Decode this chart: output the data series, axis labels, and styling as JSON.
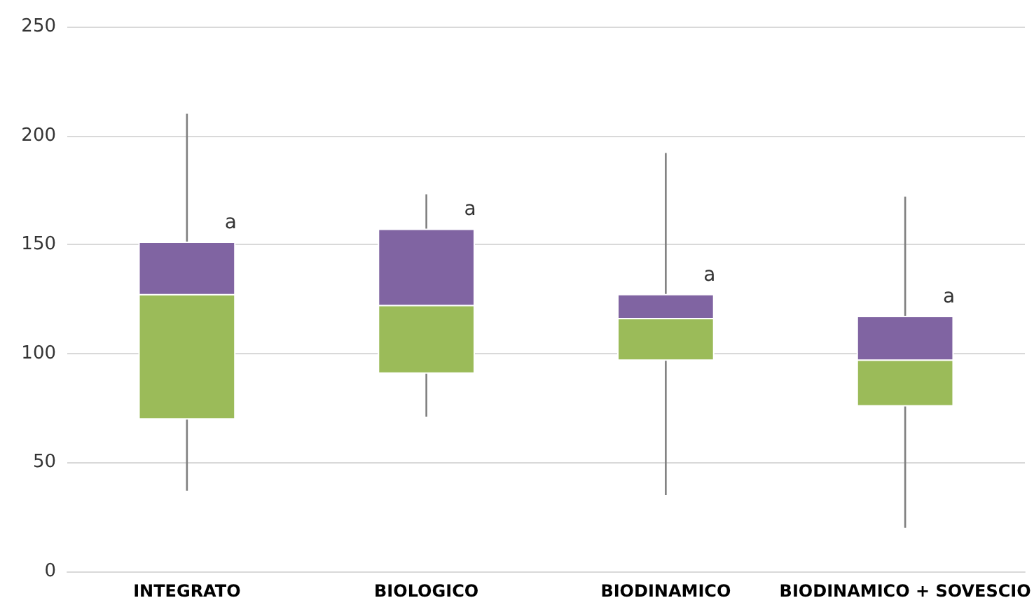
{
  "chart_data": {
    "type": "box",
    "categories": [
      "INTEGRATO",
      "BIOLOGICO",
      "BIODINAMICO",
      "BIODINAMICO + SOVESCIO"
    ],
    "boxes": [
      {
        "low": 37,
        "q1": 70,
        "median": 127,
        "q3": 151,
        "high": 210
      },
      {
        "low": 71,
        "q1": 91,
        "median": 122,
        "q3": 157,
        "high": 173
      },
      {
        "low": 35,
        "q1": 97,
        "median": 116,
        "q3": 127,
        "high": 192
      },
      {
        "low": 20,
        "q1": 76,
        "median": 97,
        "q3": 117,
        "high": 172
      }
    ],
    "colors": [
      [
        "#9bbb59",
        "#8064a2"
      ],
      [
        "#9bbb59",
        "#8064a2"
      ],
      [
        "#9bbb59",
        "#8064a2"
      ],
      [
        "#9bbb59",
        "#8064a2"
      ]
    ],
    "ylim": [
      0,
      250
    ],
    "yticks": [
      0,
      50,
      100,
      150,
      200,
      250
    ],
    "grid": "y",
    "annotations": [
      {
        "text": "a",
        "x": "INTEGRATO",
        "y": 151
      },
      {
        "text": "a",
        "x": "BIOLOGICO",
        "y": 157
      },
      {
        "text": "a",
        "x": "BIODINAMICO",
        "y": 127
      },
      {
        "text": "a",
        "x": "BIODINAMICO + SOVESCIO",
        "y": 117
      }
    ]
  }
}
